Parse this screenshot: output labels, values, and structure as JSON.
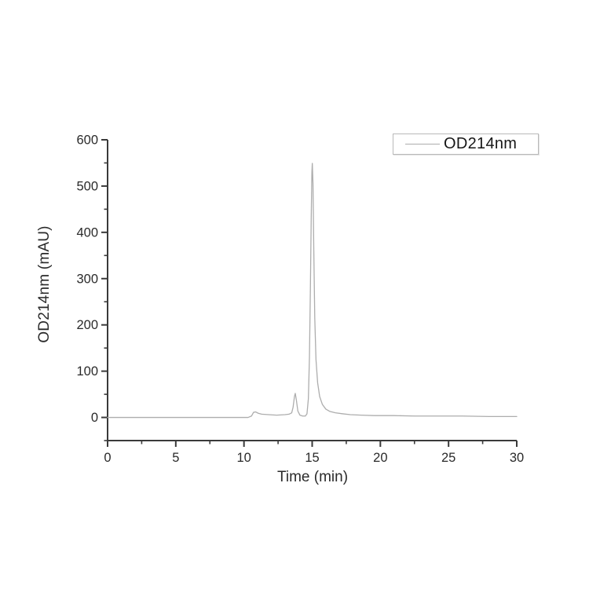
{
  "colors": {
    "background": "#ffffff",
    "axis": "#3a3a3a",
    "tick_text": "#2a2a2a",
    "series_line": "#adadad",
    "legend_border": "#b9b9b9"
  },
  "chart_data": {
    "type": "line",
    "title": "",
    "xlabel": "Time (min)",
    "ylabel": "OD214nm (mAU)",
    "xlim": [
      0,
      30
    ],
    "ylim": [
      -50,
      600
    ],
    "x_major_ticks": [
      0,
      5,
      10,
      15,
      20,
      25,
      30
    ],
    "x_minor_step": 2.5,
    "y_major_ticks": [
      0,
      100,
      200,
      300,
      400,
      500,
      600
    ],
    "y_minor_step": 50,
    "grid": false,
    "legend": {
      "position": "top-right",
      "entries": [
        {
          "label": "OD214nm",
          "color": "#adadad"
        }
      ]
    },
    "series": [
      {
        "name": "OD214nm",
        "color": "#adadad",
        "points": [
          [
            0,
            0
          ],
          [
            2,
            0
          ],
          [
            4,
            0
          ],
          [
            6,
            0
          ],
          [
            8,
            0
          ],
          [
            9.5,
            0
          ],
          [
            10.3,
            0
          ],
          [
            10.55,
            3
          ],
          [
            10.7,
            11
          ],
          [
            10.85,
            12
          ],
          [
            11.05,
            9
          ],
          [
            11.3,
            7
          ],
          [
            11.8,
            6
          ],
          [
            12.4,
            5
          ],
          [
            13.0,
            6
          ],
          [
            13.3,
            7
          ],
          [
            13.5,
            10
          ],
          [
            13.6,
            22
          ],
          [
            13.7,
            45
          ],
          [
            13.76,
            52
          ],
          [
            13.84,
            38
          ],
          [
            13.95,
            14
          ],
          [
            14.1,
            5
          ],
          [
            14.3,
            3
          ],
          [
            14.5,
            3
          ],
          [
            14.62,
            8
          ],
          [
            14.72,
            40
          ],
          [
            14.8,
            130
          ],
          [
            14.87,
            280
          ],
          [
            14.93,
            430
          ],
          [
            14.98,
            530
          ],
          [
            15.01,
            549
          ],
          [
            15.06,
            505
          ],
          [
            15.12,
            360
          ],
          [
            15.19,
            215
          ],
          [
            15.28,
            125
          ],
          [
            15.4,
            75
          ],
          [
            15.55,
            45
          ],
          [
            15.75,
            28
          ],
          [
            16.0,
            18
          ],
          [
            16.3,
            13
          ],
          [
            16.7,
            10
          ],
          [
            17.2,
            8
          ],
          [
            17.8,
            6
          ],
          [
            18.6,
            5
          ],
          [
            19.6,
            4
          ],
          [
            21,
            4
          ],
          [
            22.5,
            3
          ],
          [
            24,
            3
          ],
          [
            26,
            3
          ],
          [
            28,
            2
          ],
          [
            30,
            2
          ]
        ]
      }
    ]
  }
}
